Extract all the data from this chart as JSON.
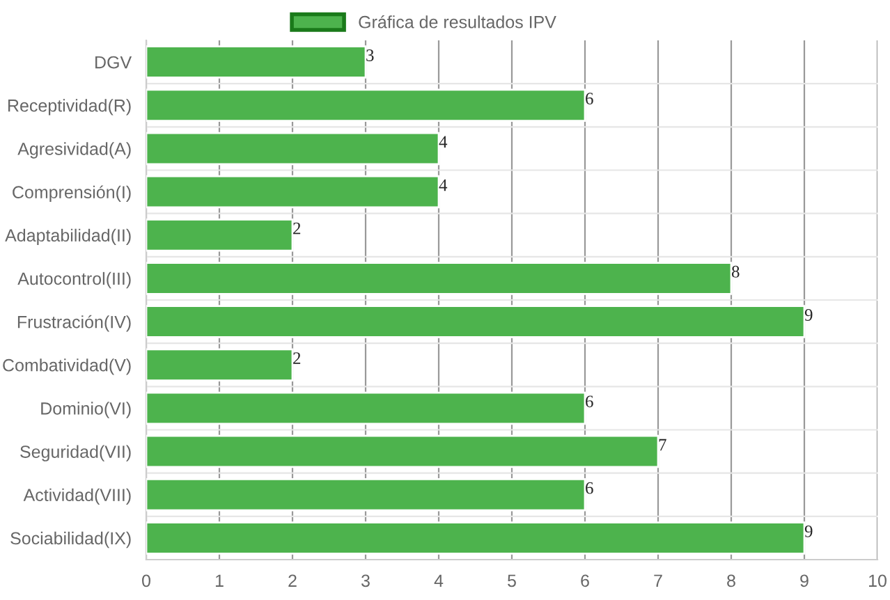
{
  "chart_data": {
    "type": "bar",
    "orientation": "horizontal",
    "categories": [
      "DGV",
      "Receptividad(R)",
      "Agresividad(A)",
      "Comprensión(I)",
      "Adaptabilidad(II)",
      "Autocontrol(III)",
      "Frustración(IV)",
      "Combatividad(V)",
      "Dominio(VI)",
      "Seguridad(VII)",
      "Actividad(VIII)",
      "Sociabilidad(IX)"
    ],
    "series": [
      {
        "name": "Gráfica de resultados IPV",
        "color": "#4db34d",
        "values": [
          3,
          6,
          4,
          4,
          2,
          8,
          9,
          2,
          6,
          7,
          6,
          9
        ]
      }
    ],
    "xlim": [
      0,
      10
    ],
    "xticks": [
      0,
      1,
      2,
      3,
      4,
      5,
      6,
      7,
      8,
      9,
      10
    ],
    "grid": true,
    "legend": "top",
    "data_labels": true
  }
}
